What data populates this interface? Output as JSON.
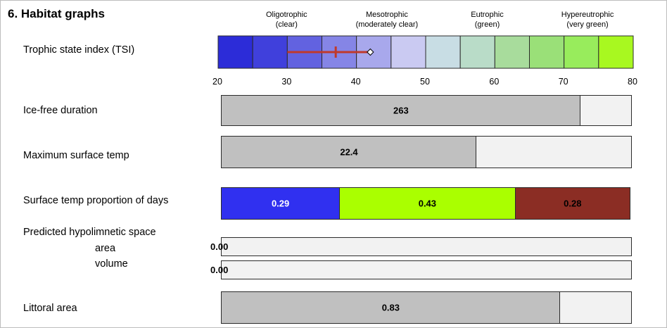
{
  "title": "6. Habitat graphs",
  "tsi": {
    "label": "Trophic state index (TSI)",
    "categories": [
      {
        "name": "Oligotrophic",
        "desc": "(clear)",
        "at": 30
      },
      {
        "name": "Mesotrophic",
        "desc": "(moderately clear)",
        "at": 44.5
      },
      {
        "name": "Eutrophic",
        "desc": "(green)",
        "at": 59
      },
      {
        "name": "Hypereutrophic",
        "desc": "(very green)",
        "at": 73.5
      }
    ],
    "axis_ticks": [
      "20",
      "30",
      "40",
      "50",
      "60",
      "70",
      "80"
    ],
    "gradient_colors": [
      "#2c2cd8",
      "#4040dc",
      "#6262e0",
      "#8585e6",
      "#a8a8ec",
      "#cacaf2",
      "#c8dde4",
      "#b9dcc8",
      "#a8dc9c",
      "#9ae078",
      "#98ec5c",
      "#a8f820"
    ],
    "range_line_color": "#c0392b",
    "chart_data": {
      "type": "range",
      "xlim": [
        20,
        80
      ],
      "range": [
        30,
        42
      ],
      "mean": 37,
      "marker": 42,
      "band_width": 5
    }
  },
  "rows": [
    {
      "key": "ice",
      "label": "Ice-free duration",
      "value_text": "263",
      "fill_fraction": 0.876
    },
    {
      "key": "temp",
      "label": "Maximum surface temp",
      "value_text": "22.4",
      "fill_fraction": 0.622
    }
  ],
  "proportion": {
    "label": "Surface temp proportion of days",
    "segments": [
      {
        "value": 0.29,
        "label": "0.29",
        "color": "#3030f0",
        "text_color": "#ffffff"
      },
      {
        "value": 0.43,
        "label": "0.43",
        "color": "#aaff00",
        "text_color": "#000000"
      },
      {
        "value": 0.28,
        "label": "0.28",
        "color": "#8b2d24",
        "text_color": "#000000"
      }
    ]
  },
  "hypolimnion": {
    "label": "Predicted hypolimnetic space",
    "area_label": "area",
    "volume_label": "volume",
    "area_value": "0.00",
    "volume_value": "0.00",
    "area_fraction": 0,
    "volume_fraction": 0
  },
  "littoral": {
    "label": "Littoral area",
    "value_text": "0.83",
    "fill_fraction": 0.826
  },
  "chart_data": {
    "type": "bar",
    "categories": [
      "Ice-free duration",
      "Maximum surface temp",
      "Surface temp proportion of days",
      "Predicted hypolimnetic space area",
      "Predicted hypolimnetic space volume",
      "Littoral area"
    ],
    "values": [
      263,
      22.4,
      [
        0.29,
        0.43,
        0.28
      ],
      0.0,
      0.0,
      0.83
    ]
  }
}
